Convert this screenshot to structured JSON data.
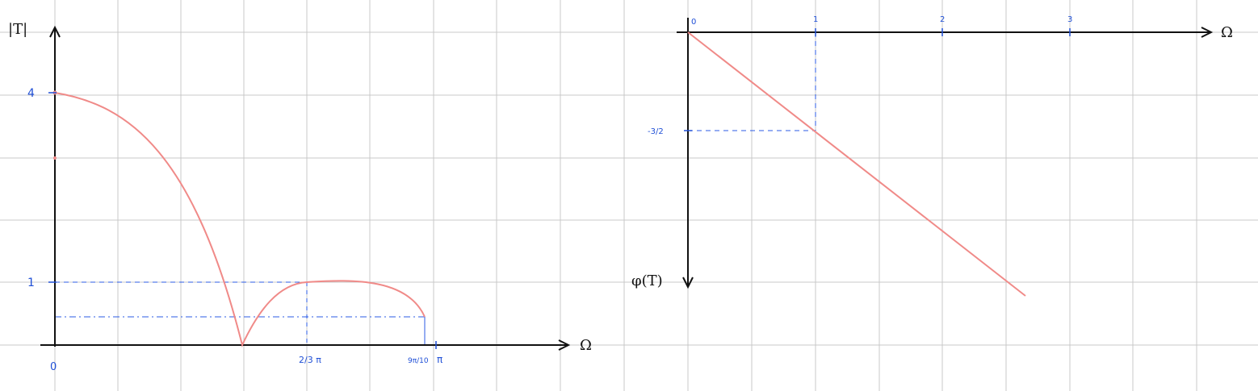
{
  "colors": {
    "grid": "#c8c8c8",
    "axis": "#111111",
    "curve": "#f08a88",
    "guide": "#2b5be6",
    "tick_text": "#1f4fd6"
  },
  "left_plot": {
    "y_axis_label": "|T|",
    "x_axis_label": "Ω",
    "y_ticks": [
      "4",
      "1"
    ],
    "x_ticks": [
      "0",
      "2/3 π",
      "9π/10",
      "π"
    ]
  },
  "right_plot": {
    "y_axis_label": "φ(T)",
    "x_axis_label": "Ω",
    "x_ticks": [
      "0",
      "1",
      "2",
      "3"
    ],
    "y_ticks": [
      "-3/2"
    ]
  }
}
